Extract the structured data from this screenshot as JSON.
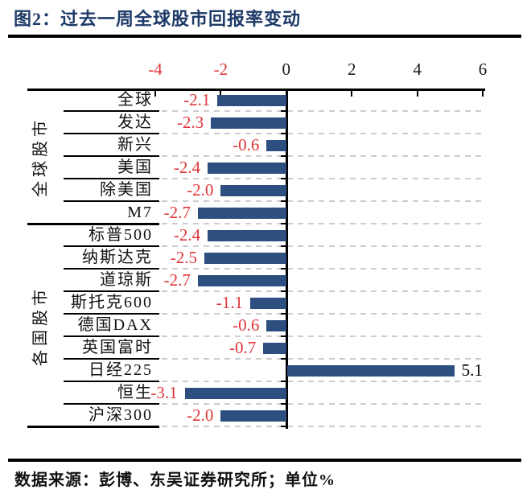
{
  "figure": {
    "title": "图2：过去一周全球股市回报率变动",
    "source_note": "数据来源：彭博、东吴证券研究所；单位%"
  },
  "chart_data": {
    "type": "bar",
    "orientation": "horizontal",
    "title": "过去一周全球股市回报率变动",
    "unit": "%",
    "value_axis": {
      "position": "top",
      "min": -4,
      "max": 6,
      "ticks": [
        -4,
        -2,
        0,
        2,
        4,
        6
      ],
      "grid": "dashed horizontal row lines"
    },
    "groups": [
      {
        "label": "全球股市",
        "categories": [
          "全球",
          "发达",
          "新兴",
          "美国",
          "除美国",
          "M7"
        ],
        "values": [
          -2.1,
          -2.3,
          -0.6,
          -2.4,
          -2.0,
          -2.7
        ]
      },
      {
        "label": "各国股市",
        "categories": [
          "标普500",
          "纳斯达克",
          "道琼斯",
          "斯托克600",
          "德国DAX",
          "英国富时",
          "日经225",
          "恒生",
          "沪深300"
        ],
        "values": [
          -2.4,
          -2.5,
          -2.7,
          -1.1,
          -0.6,
          -0.7,
          5.1,
          -3.1,
          -2.0
        ]
      }
    ],
    "colors": {
      "bar": "#2d4f80",
      "title": "#1e3a68",
      "negative_value_label": "#e03538",
      "negative_axis_tick_label": "#e03538",
      "positive_axis_tick_label": "#1a1a1a",
      "positive_value_label": "#000000",
      "axis_line": "#000000",
      "gridline": "#cccccc"
    }
  }
}
